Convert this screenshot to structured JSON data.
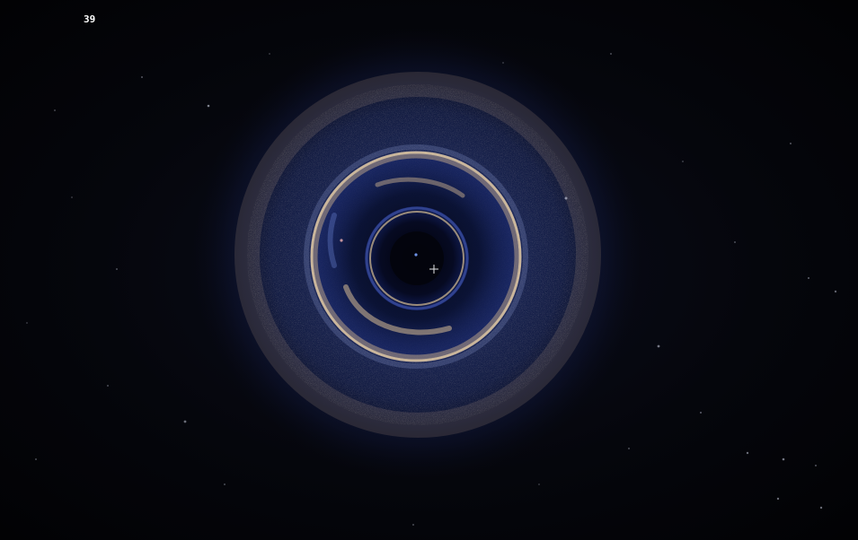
{
  "hud": {
    "fps": "39"
  },
  "colors": {
    "background": "#05060c",
    "disk_blue": "#3c56b4",
    "ring_gold": "#e8c89a",
    "crosshair": "#ffffff"
  },
  "icons": {
    "crosshair": "plus-crosshair"
  }
}
